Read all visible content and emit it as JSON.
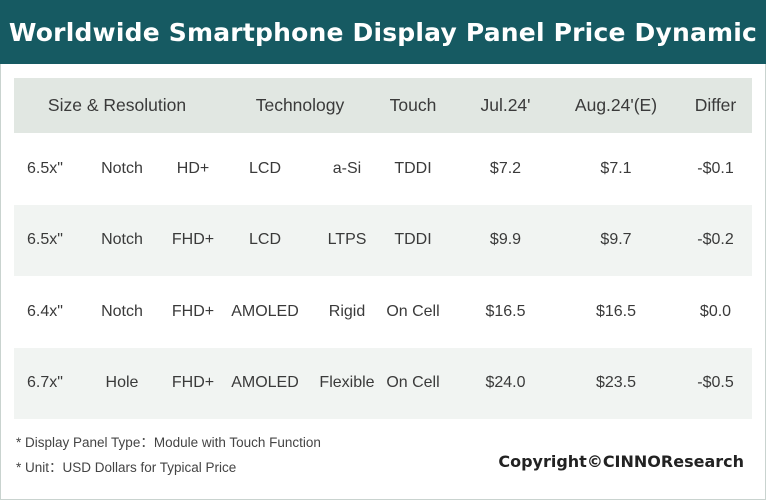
{
  "title": "Worldwide Smartphone Display Panel Price Dynamic",
  "headers": {
    "size_resolution": "Size & Resolution",
    "technology": "Technology",
    "touch": "Touch",
    "jul": "Jul.24'",
    "aug": "Aug.24'(E)",
    "differ": "Differ"
  },
  "rows": [
    {
      "size": "6.5x\"",
      "notch": "Notch",
      "res": "HD+",
      "tech": "LCD",
      "sub": "a-Si",
      "touch": "TDDI",
      "jul": "$7.2",
      "aug": "$7.1",
      "differ": "-$0.1"
    },
    {
      "size": "6.5x\"",
      "notch": "Notch",
      "res": "FHD+",
      "tech": "LCD",
      "sub": "LTPS",
      "touch": "TDDI",
      "jul": "$9.9",
      "aug": "$9.7",
      "differ": "-$0.2"
    },
    {
      "size": "6.4x\"",
      "notch": "Notch",
      "res": "FHD+",
      "tech": "AMOLED",
      "sub": "Rigid",
      "touch": "On Cell",
      "jul": "$16.5",
      "aug": "$16.5",
      "differ": "$0.0"
    },
    {
      "size": "6.7x\"",
      "notch": "Hole",
      "res": "FHD+",
      "tech": "AMOLED",
      "sub": "Flexible",
      "touch": "On Cell",
      "jul": "$24.0",
      "aug": "$23.5",
      "differ": "-$0.5"
    }
  ],
  "notes": [
    "* Display Panel Type：Module with Touch Function",
    "* Unit：USD Dollars for Typical Price"
  ],
  "copyright": "Copyright©CINNOResearch",
  "colors": {
    "title_bg": "#165a62",
    "header_bg": "#e1e7e2",
    "stripe_bg": "#f1f4f2"
  }
}
